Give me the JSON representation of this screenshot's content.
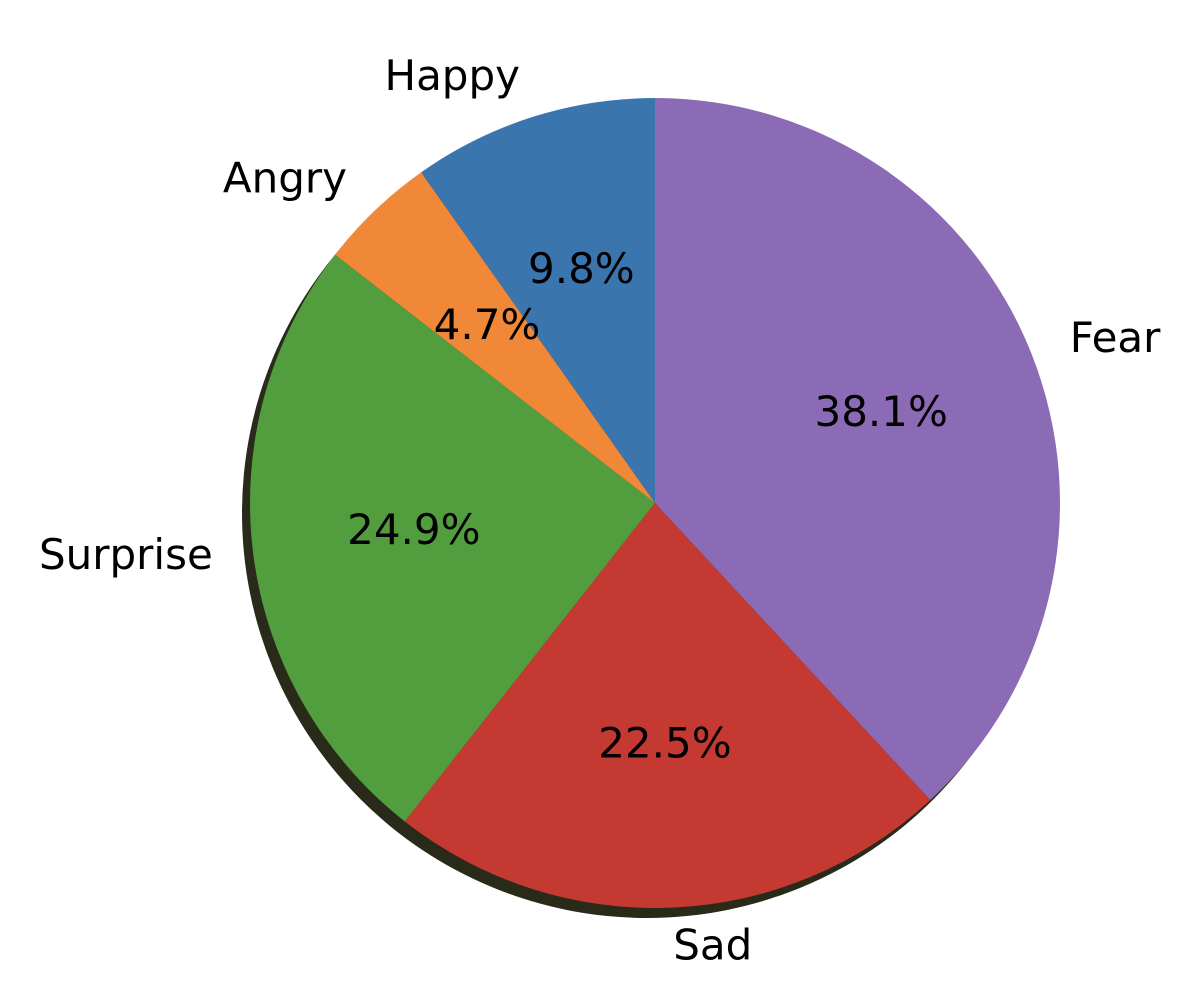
{
  "chart_data": {
    "type": "pie",
    "categories": [
      "Happy",
      "Angry",
      "Surprise",
      "Sad",
      "Fear"
    ],
    "values": [
      9.8,
      4.7,
      24.9,
      22.5,
      38.1
    ],
    "value_labels": [
      "9.8%",
      "4.7%",
      "24.9%",
      "22.5%",
      "38.1%"
    ],
    "colors": [
      "#3a75ae",
      "#f08838",
      "#529e3f",
      "#c43a32",
      "#8b6bb6"
    ],
    "start_angle": 90,
    "direction": "counterclockwise",
    "shadow": true
  }
}
